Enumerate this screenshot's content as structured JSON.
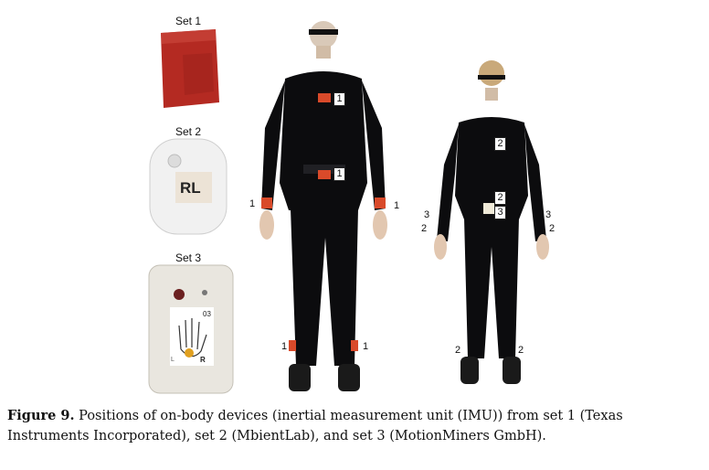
{
  "sets": [
    {
      "title": "Set 1"
    },
    {
      "title": "Set 2",
      "device_label": "RL"
    },
    {
      "title": "Set 3",
      "device_code": "03",
      "device_side": "R",
      "device_side_left": "L"
    }
  ],
  "person1": {
    "labels": [
      "1",
      "1",
      "1",
      "1",
      "1",
      "1"
    ]
  },
  "person2": {
    "labels": [
      "2",
      "2",
      "3",
      "3",
      "3",
      "2",
      "2",
      "2",
      "2"
    ]
  },
  "caption": {
    "label": "Figure 9.",
    "text": " Positions of on-body devices (inertial measurement unit (IMU)) from set 1 (Texas Instruments Incorporated), set 2 (MbientLab), and set 3 (MotionMiners GmbH)."
  },
  "colors": {
    "set1_device": "#b42a22",
    "tag_red": "#d94a2a",
    "suit": "#0c0c0e"
  }
}
